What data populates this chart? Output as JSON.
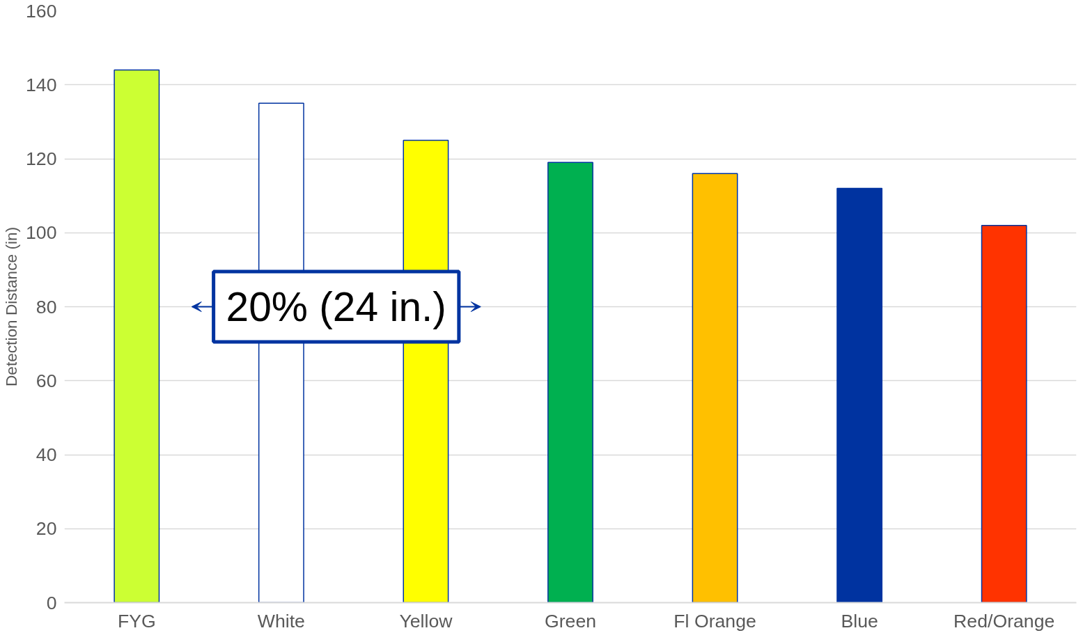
{
  "chart_data": {
    "type": "bar",
    "ylabel": "Detection Distance (in)",
    "categories": [
      "FYG",
      "White",
      "Yellow",
      "Green",
      "Fl Orange",
      "Blue",
      "Red/Orange"
    ],
    "values": [
      144,
      135,
      125,
      119,
      116,
      112,
      102
    ],
    "colors": [
      "#ccff33",
      "#ffffff",
      "#ffff00",
      "#00b050",
      "#ffc000",
      "#0033a0",
      "#ff3300"
    ],
    "ylim": [
      0,
      160
    ],
    "yticks": [
      0,
      20,
      40,
      60,
      80,
      100,
      120,
      140,
      160
    ],
    "grid": "y",
    "annotations": [
      "20% (24 in.)"
    ]
  }
}
